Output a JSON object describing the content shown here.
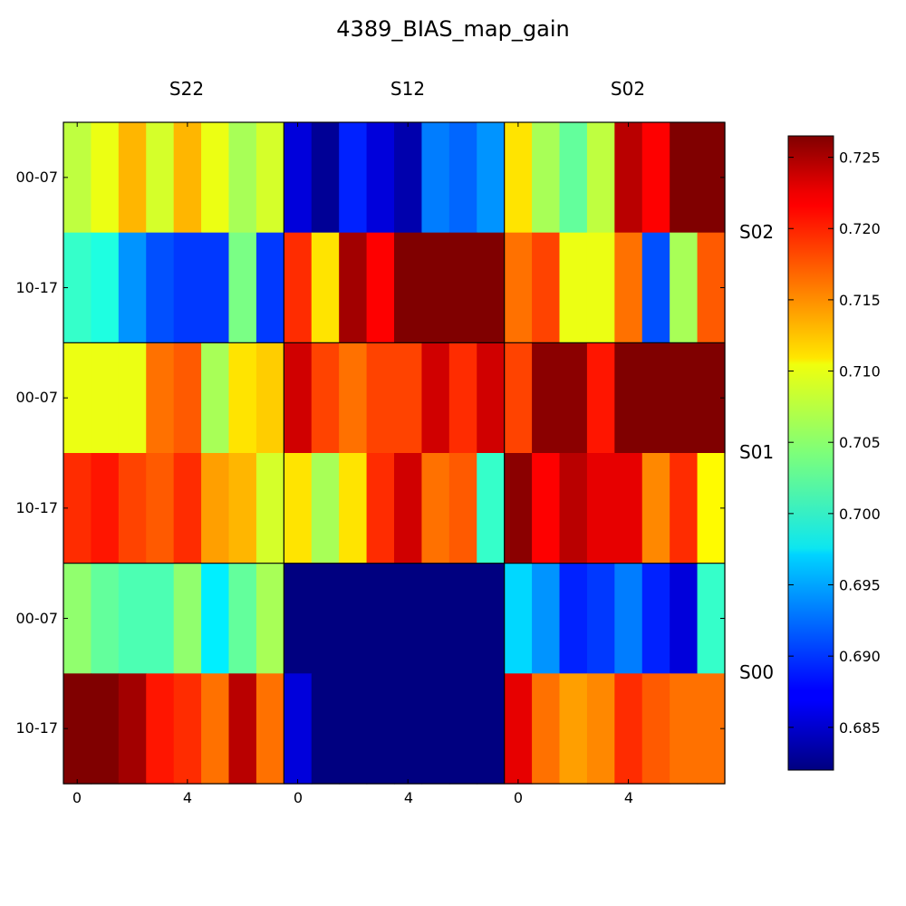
{
  "chart_data": {
    "type": "heatmap",
    "title": "4389_BIAS_map_gain",
    "colormap": "jet",
    "vmin": 0.682,
    "vmax": 0.7265,
    "column_blocks": [
      "S22",
      "S12",
      "S02"
    ],
    "row_blocks": [
      "S02",
      "S01",
      "S00"
    ],
    "row_sub_labels": [
      "00-07",
      "10-17"
    ],
    "x_ticks": [
      0,
      4
    ],
    "colorbar_ticks": [
      "0.685",
      "0.690",
      "0.695",
      "0.700",
      "0.705",
      "0.710",
      "0.715",
      "0.720",
      "0.725"
    ],
    "rows": [
      {
        "block": "S02",
        "sub": "00-07",
        "values": [
          0.707,
          0.709,
          0.713,
          0.708,
          0.713,
          0.709,
          0.706,
          0.708,
          0.686,
          0.683,
          0.689,
          0.686,
          0.684,
          0.693,
          0.692,
          0.694,
          0.711,
          0.706,
          0.703,
          0.707,
          0.724,
          0.721,
          0.727,
          0.727
        ]
      },
      {
        "block": "S02",
        "sub": "10-17",
        "values": [
          0.701,
          0.7,
          0.694,
          0.691,
          0.69,
          0.69,
          0.704,
          0.69,
          0.719,
          0.711,
          0.725,
          0.721,
          0.727,
          0.727,
          0.727,
          0.727,
          0.716,
          0.718,
          0.709,
          0.709,
          0.716,
          0.691,
          0.706,
          0.717
        ]
      },
      {
        "block": "S01",
        "sub": "00-07",
        "values": [
          0.709,
          0.709,
          0.709,
          0.716,
          0.717,
          0.706,
          0.711,
          0.712,
          0.723,
          0.718,
          0.716,
          0.718,
          0.718,
          0.723,
          0.719,
          0.723,
          0.718,
          0.726,
          0.726,
          0.72,
          0.727,
          0.727,
          0.727,
          0.727
        ]
      },
      {
        "block": "S01",
        "sub": "10-17",
        "values": [
          0.719,
          0.72,
          0.718,
          0.717,
          0.719,
          0.714,
          0.713,
          0.708,
          0.711,
          0.706,
          0.711,
          0.719,
          0.723,
          0.716,
          0.717,
          0.701,
          0.726,
          0.721,
          0.724,
          0.722,
          0.722,
          0.715,
          0.719,
          0.71
        ]
      },
      {
        "block": "S00",
        "sub": "00-07",
        "values": [
          0.705,
          0.703,
          0.702,
          0.702,
          0.705,
          0.698,
          0.703,
          0.706,
          0.682,
          0.682,
          0.682,
          0.682,
          0.682,
          0.682,
          0.682,
          0.682,
          0.697,
          0.694,
          0.689,
          0.69,
          0.693,
          0.689,
          0.686,
          0.701
        ]
      },
      {
        "block": "S00",
        "sub": "10-17",
        "values": [
          0.727,
          0.727,
          0.725,
          0.72,
          0.719,
          0.716,
          0.724,
          0.716,
          0.686,
          0.682,
          0.682,
          0.682,
          0.682,
          0.682,
          0.682,
          0.682,
          0.722,
          0.716,
          0.714,
          0.715,
          0.719,
          0.717,
          0.716,
          0.716
        ]
      }
    ]
  }
}
